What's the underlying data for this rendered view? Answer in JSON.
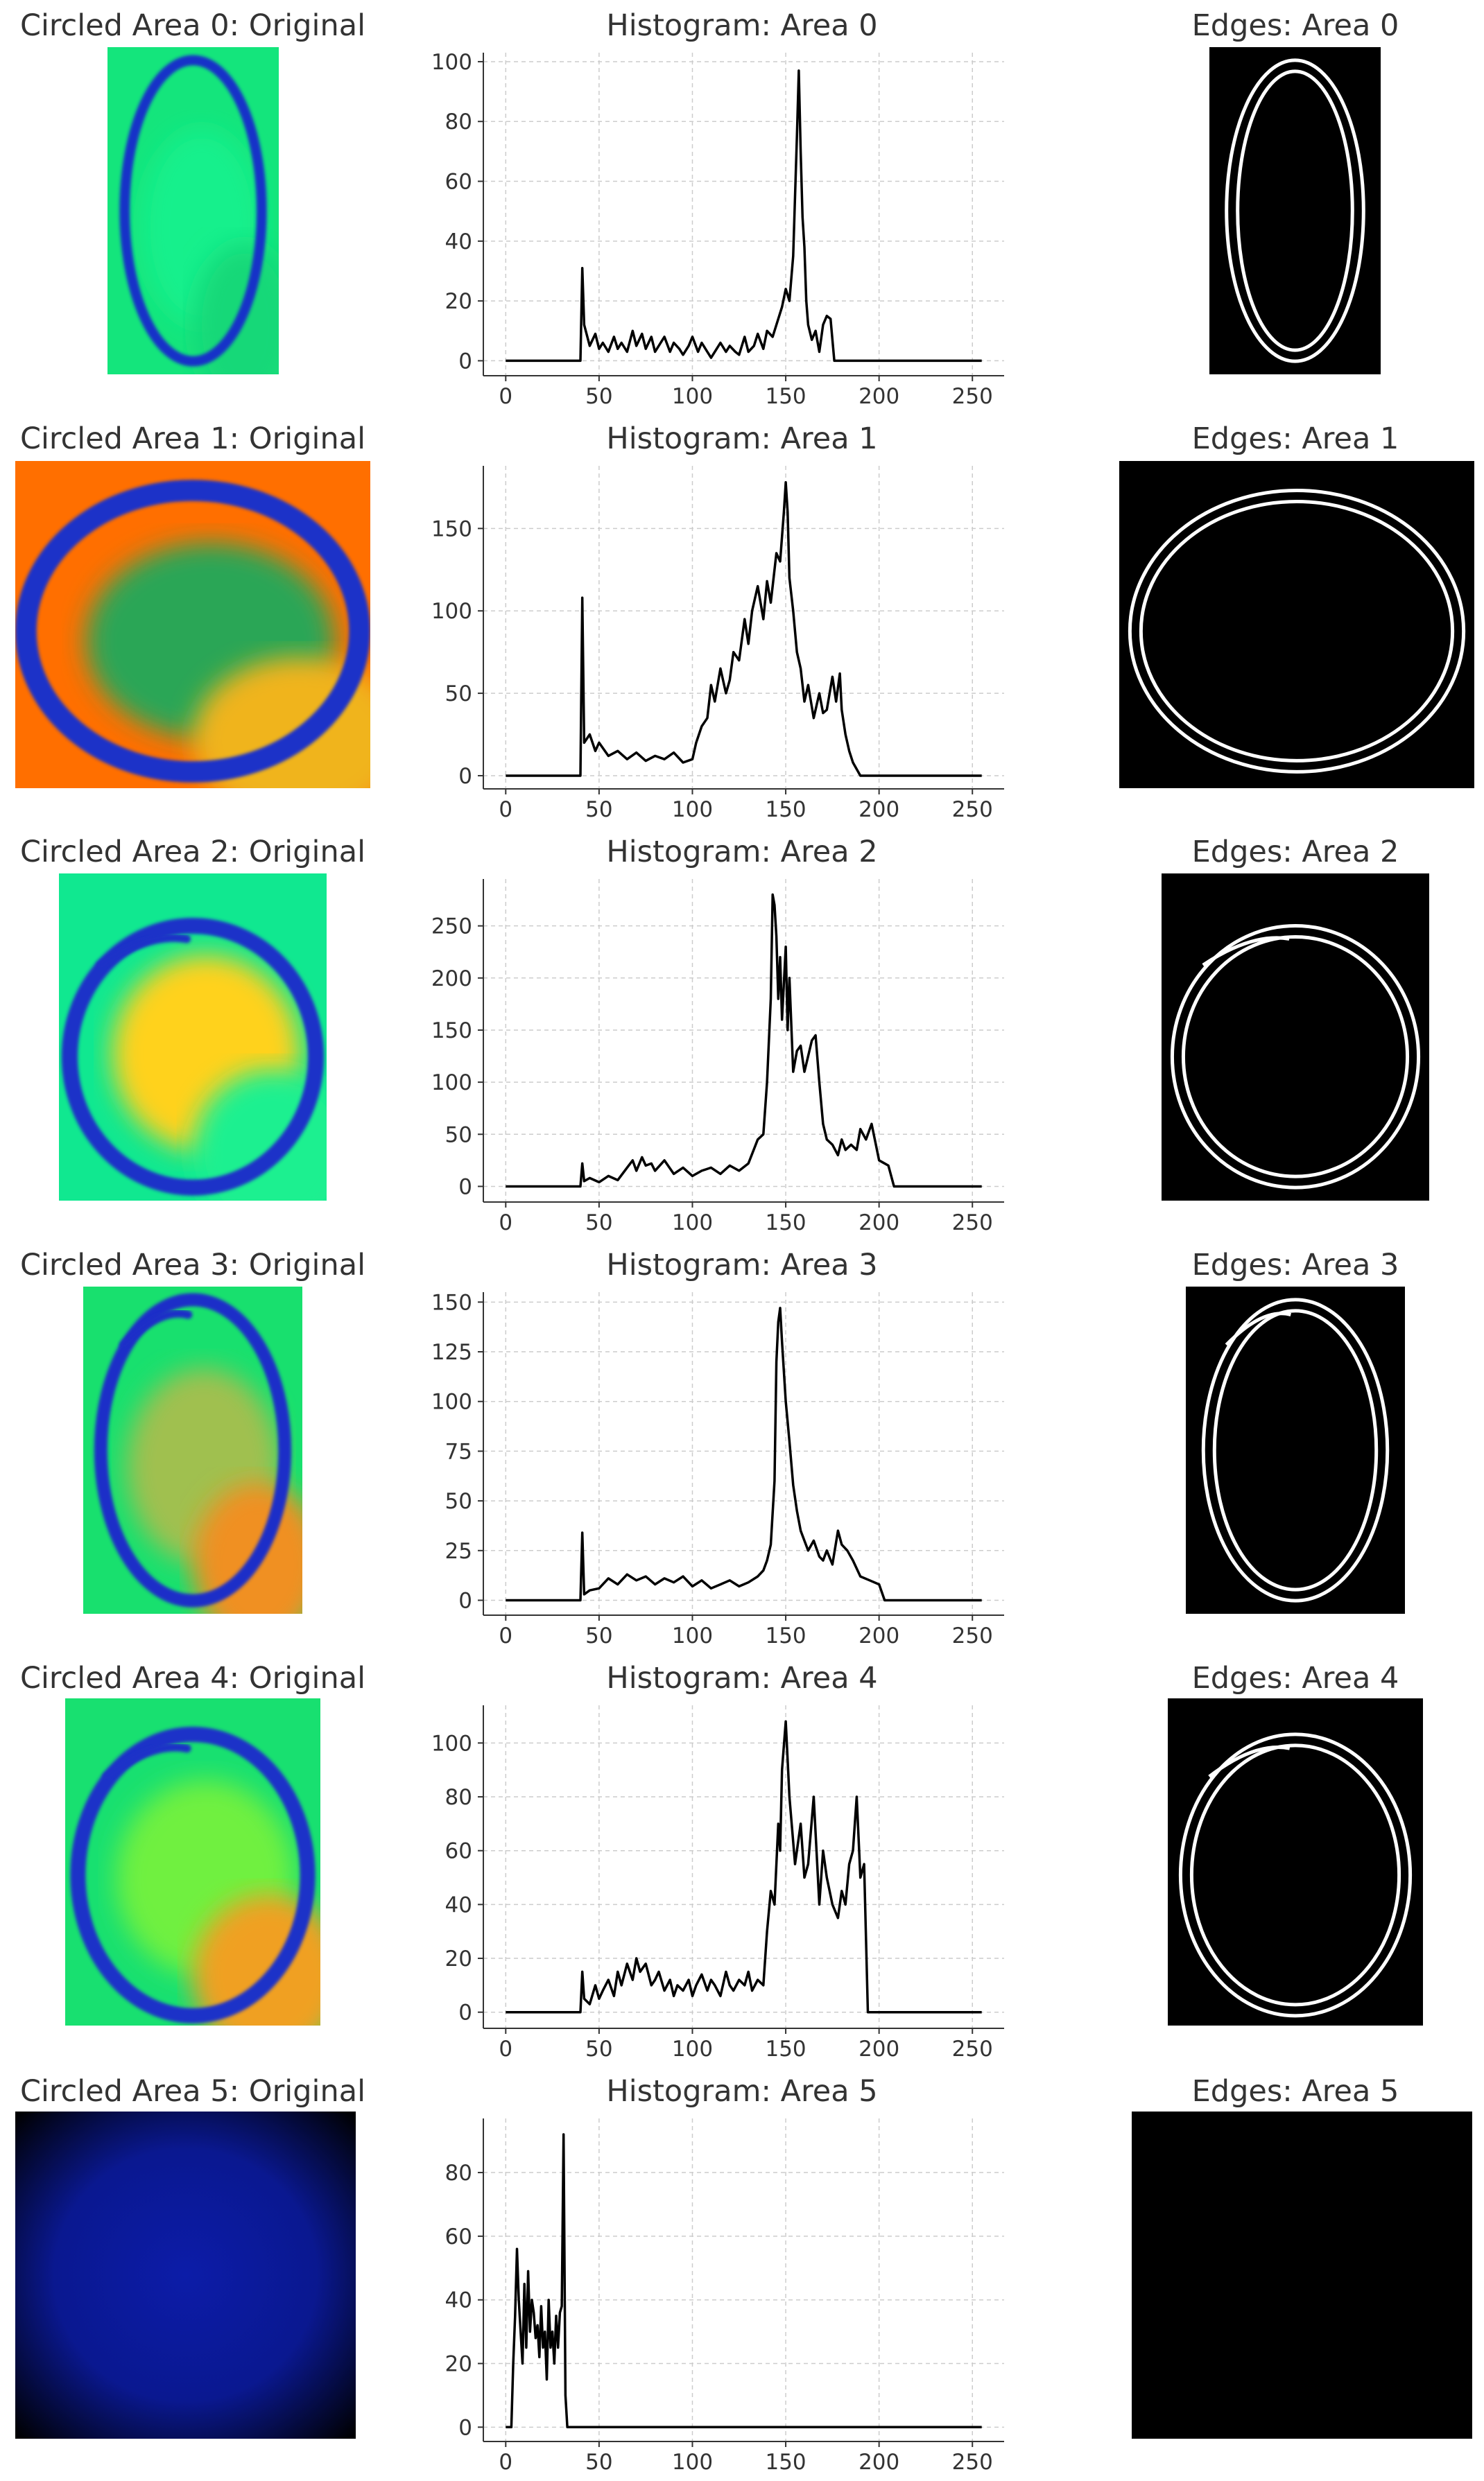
{
  "chart_data": [
    {
      "area": 0,
      "type": "line",
      "titles": {
        "original": "Circled Area 0: Original",
        "histogram": "Histogram: Area 0",
        "edges": "Edges: Area 0"
      },
      "xlim": [
        -12,
        267
      ],
      "ylim": [
        -5,
        103
      ],
      "xticks": [
        0,
        50,
        100,
        150,
        200,
        250
      ],
      "yticks": [
        0,
        20,
        40,
        60,
        80,
        100
      ],
      "x": [
        0,
        40,
        41,
        42,
        45,
        48,
        50,
        52,
        55,
        58,
        60,
        62,
        65,
        68,
        70,
        73,
        75,
        78,
        80,
        83,
        85,
        88,
        90,
        93,
        95,
        98,
        100,
        103,
        105,
        108,
        110,
        113,
        115,
        118,
        120,
        123,
        125,
        128,
        130,
        133,
        135,
        138,
        140,
        143,
        145,
        148,
        150,
        152,
        154,
        155,
        156,
        157,
        158,
        159,
        160,
        161,
        162,
        164,
        166,
        168,
        170,
        172,
        174,
        176,
        255
      ],
      "values": [
        0,
        0,
        31,
        12,
        5,
        9,
        4,
        6,
        3,
        8,
        4,
        6,
        3,
        10,
        5,
        9,
        4,
        8,
        3,
        6,
        8,
        3,
        6,
        4,
        2,
        5,
        8,
        3,
        6,
        3,
        1,
        4,
        6,
        3,
        5,
        3,
        2,
        8,
        3,
        5,
        9,
        4,
        10,
        8,
        12,
        18,
        24,
        20,
        35,
        55,
        75,
        97,
        70,
        48,
        38,
        20,
        12,
        7,
        10,
        3,
        12,
        15,
        14,
        0,
        0
      ],
      "original_image": {
        "kind": "loop",
        "bg": [
          "#14e57c",
          "#16f08c",
          "#12d878"
        ],
        "stroke": "#1530c8"
      }
    },
    {
      "area": 1,
      "type": "line",
      "titles": {
        "original": "Circled Area 1: Original",
        "histogram": "Histogram: Area 1",
        "edges": "Edges: Area 1"
      },
      "xlim": [
        -12,
        267
      ],
      "ylim": [
        -8,
        188
      ],
      "xticks": [
        0,
        50,
        100,
        150,
        200,
        250
      ],
      "yticks": [
        0,
        50,
        100,
        150
      ],
      "x": [
        0,
        40,
        41,
        42,
        45,
        48,
        50,
        55,
        60,
        65,
        70,
        75,
        80,
        85,
        90,
        95,
        100,
        102,
        105,
        108,
        110,
        112,
        115,
        118,
        120,
        122,
        125,
        128,
        130,
        132,
        135,
        138,
        140,
        142,
        145,
        147,
        149,
        150,
        151,
        152,
        154,
        156,
        158,
        160,
        162,
        165,
        168,
        170,
        172,
        175,
        177,
        179,
        180,
        182,
        184,
        186,
        190,
        195,
        255
      ],
      "values": [
        0,
        0,
        108,
        20,
        25,
        15,
        20,
        12,
        15,
        10,
        14,
        9,
        12,
        10,
        14,
        8,
        10,
        20,
        30,
        35,
        55,
        45,
        65,
        50,
        58,
        75,
        70,
        95,
        80,
        100,
        115,
        95,
        118,
        105,
        135,
        130,
        160,
        178,
        160,
        120,
        100,
        75,
        65,
        45,
        55,
        35,
        50,
        38,
        40,
        60,
        45,
        62,
        40,
        25,
        15,
        8,
        0,
        0,
        0
      ],
      "original_image": {
        "kind": "loop",
        "bg": [
          "#ff6f00",
          "#2aa656",
          "#f0b41e"
        ],
        "stroke": "#1a32c8"
      }
    },
    {
      "area": 2,
      "type": "line",
      "titles": {
        "original": "Circled Area 2: Original",
        "histogram": "Histogram: Area 2",
        "edges": "Edges: Area 2"
      },
      "xlim": [
        -12,
        267
      ],
      "ylim": [
        -15,
        295
      ],
      "xticks": [
        0,
        50,
        100,
        150,
        200,
        250
      ],
      "yticks": [
        0,
        50,
        100,
        150,
        200,
        250
      ],
      "x": [
        0,
        40,
        41,
        42,
        45,
        50,
        55,
        60,
        65,
        68,
        70,
        73,
        75,
        78,
        80,
        85,
        90,
        95,
        100,
        105,
        110,
        115,
        120,
        125,
        130,
        135,
        138,
        140,
        142,
        143,
        144,
        145,
        146,
        147,
        148,
        150,
        151,
        152,
        154,
        156,
        158,
        160,
        162,
        164,
        166,
        168,
        170,
        172,
        175,
        178,
        180,
        182,
        185,
        188,
        190,
        193,
        196,
        200,
        205,
        208,
        210,
        255
      ],
      "values": [
        0,
        0,
        22,
        5,
        8,
        4,
        10,
        6,
        18,
        25,
        15,
        28,
        20,
        22,
        15,
        25,
        12,
        18,
        10,
        15,
        18,
        12,
        20,
        15,
        22,
        45,
        50,
        100,
        180,
        280,
        270,
        240,
        180,
        220,
        160,
        230,
        150,
        200,
        110,
        130,
        135,
        110,
        125,
        140,
        145,
        100,
        60,
        45,
        40,
        30,
        45,
        35,
        40,
        35,
        55,
        45,
        60,
        25,
        20,
        0,
        0,
        0
      ],
      "original_image": {
        "kind": "loop",
        "bg": [
          "#10e890",
          "#ffd21e",
          "#1ef090"
        ],
        "stroke": "#1f32c8"
      }
    },
    {
      "area": 3,
      "type": "line",
      "titles": {
        "original": "Circled Area 3: Original",
        "histogram": "Histogram: Area 3",
        "edges": "Edges: Area 3"
      },
      "xlim": [
        -12,
        267
      ],
      "ylim": [
        -7.5,
        155
      ],
      "xticks": [
        0,
        50,
        100,
        150,
        200,
        250
      ],
      "yticks": [
        0,
        25,
        50,
        75,
        100,
        125,
        150
      ],
      "x": [
        0,
        40,
        41,
        42,
        45,
        50,
        55,
        60,
        65,
        70,
        75,
        80,
        85,
        90,
        95,
        100,
        105,
        110,
        115,
        120,
        125,
        130,
        135,
        138,
        140,
        142,
        144,
        145,
        146,
        147,
        148,
        150,
        152,
        154,
        156,
        158,
        160,
        162,
        165,
        168,
        170,
        172,
        175,
        178,
        180,
        183,
        186,
        190,
        195,
        200,
        203,
        205,
        255
      ],
      "values": [
        0,
        0,
        34,
        3,
        5,
        6,
        11,
        8,
        13,
        10,
        12,
        8,
        11,
        9,
        12,
        7,
        10,
        6,
        8,
        10,
        7,
        9,
        12,
        15,
        20,
        28,
        60,
        120,
        140,
        147,
        130,
        100,
        80,
        58,
        45,
        35,
        30,
        25,
        30,
        22,
        20,
        25,
        18,
        35,
        28,
        25,
        20,
        12,
        10,
        8,
        0,
        0,
        0
      ],
      "original_image": {
        "kind": "loop",
        "bg": [
          "#18e06e",
          "#a0c050",
          "#f09020"
        ],
        "stroke": "#1a2ec8"
      }
    },
    {
      "area": 4,
      "type": "line",
      "titles": {
        "original": "Circled Area 4: Original",
        "histogram": "Histogram: Area 4",
        "edges": "Edges: Area 4"
      },
      "xlim": [
        -12,
        267
      ],
      "ylim": [
        -6,
        114
      ],
      "xticks": [
        0,
        50,
        100,
        150,
        200,
        250
      ],
      "yticks": [
        0,
        20,
        40,
        60,
        80,
        100
      ],
      "x": [
        0,
        40,
        41,
        42,
        45,
        48,
        50,
        52,
        55,
        58,
        60,
        62,
        65,
        68,
        70,
        72,
        75,
        78,
        80,
        82,
        85,
        88,
        90,
        92,
        95,
        98,
        100,
        102,
        105,
        108,
        110,
        112,
        115,
        118,
        120,
        122,
        125,
        128,
        130,
        132,
        135,
        138,
        140,
        142,
        144,
        145,
        146,
        147,
        148,
        150,
        152,
        155,
        158,
        160,
        162,
        165,
        168,
        170,
        172,
        175,
        178,
        180,
        182,
        184,
        186,
        188,
        190,
        192,
        194,
        255
      ],
      "values": [
        0,
        0,
        15,
        5,
        3,
        10,
        5,
        8,
        12,
        6,
        15,
        10,
        18,
        12,
        20,
        15,
        18,
        10,
        12,
        15,
        8,
        12,
        6,
        10,
        8,
        12,
        6,
        10,
        14,
        8,
        12,
        10,
        6,
        15,
        10,
        8,
        12,
        10,
        15,
        8,
        12,
        10,
        30,
        45,
        40,
        55,
        70,
        60,
        90,
        108,
        80,
        55,
        70,
        50,
        55,
        80,
        40,
        60,
        50,
        40,
        35,
        45,
        40,
        55,
        60,
        80,
        50,
        55,
        0,
        0
      ],
      "original_image": {
        "kind": "loop",
        "bg": [
          "#18e070",
          "#70f040",
          "#f0a020"
        ],
        "stroke": "#1f32c8"
      }
    },
    {
      "area": 5,
      "type": "line",
      "titles": {
        "original": "Circled Area 5: Original",
        "histogram": "Histogram: Area 5",
        "edges": "Edges: Area 5"
      },
      "xlim": [
        -12,
        267
      ],
      "ylim": [
        -4.5,
        97
      ],
      "xticks": [
        0,
        50,
        100,
        150,
        200,
        250
      ],
      "yticks": [
        0,
        20,
        40,
        60,
        80
      ],
      "x": [
        0,
        1,
        2,
        3,
        4,
        5,
        6,
        7,
        8,
        9,
        10,
        11,
        12,
        13,
        14,
        15,
        16,
        17,
        18,
        19,
        20,
        21,
        22,
        23,
        24,
        25,
        26,
        27,
        28,
        29,
        30,
        31,
        32,
        33,
        255
      ],
      "values": [
        0,
        0,
        0,
        0,
        20,
        35,
        56,
        40,
        30,
        20,
        45,
        25,
        49,
        30,
        40,
        36,
        28,
        32,
        22,
        38,
        25,
        30,
        15,
        40,
        25,
        30,
        20,
        35,
        25,
        36,
        38,
        92,
        10,
        0,
        0
      ],
      "original_image": {
        "kind": "gradient",
        "bg": [
          "#0c1ca8",
          "#000000"
        ],
        "stroke": ""
      }
    }
  ]
}
